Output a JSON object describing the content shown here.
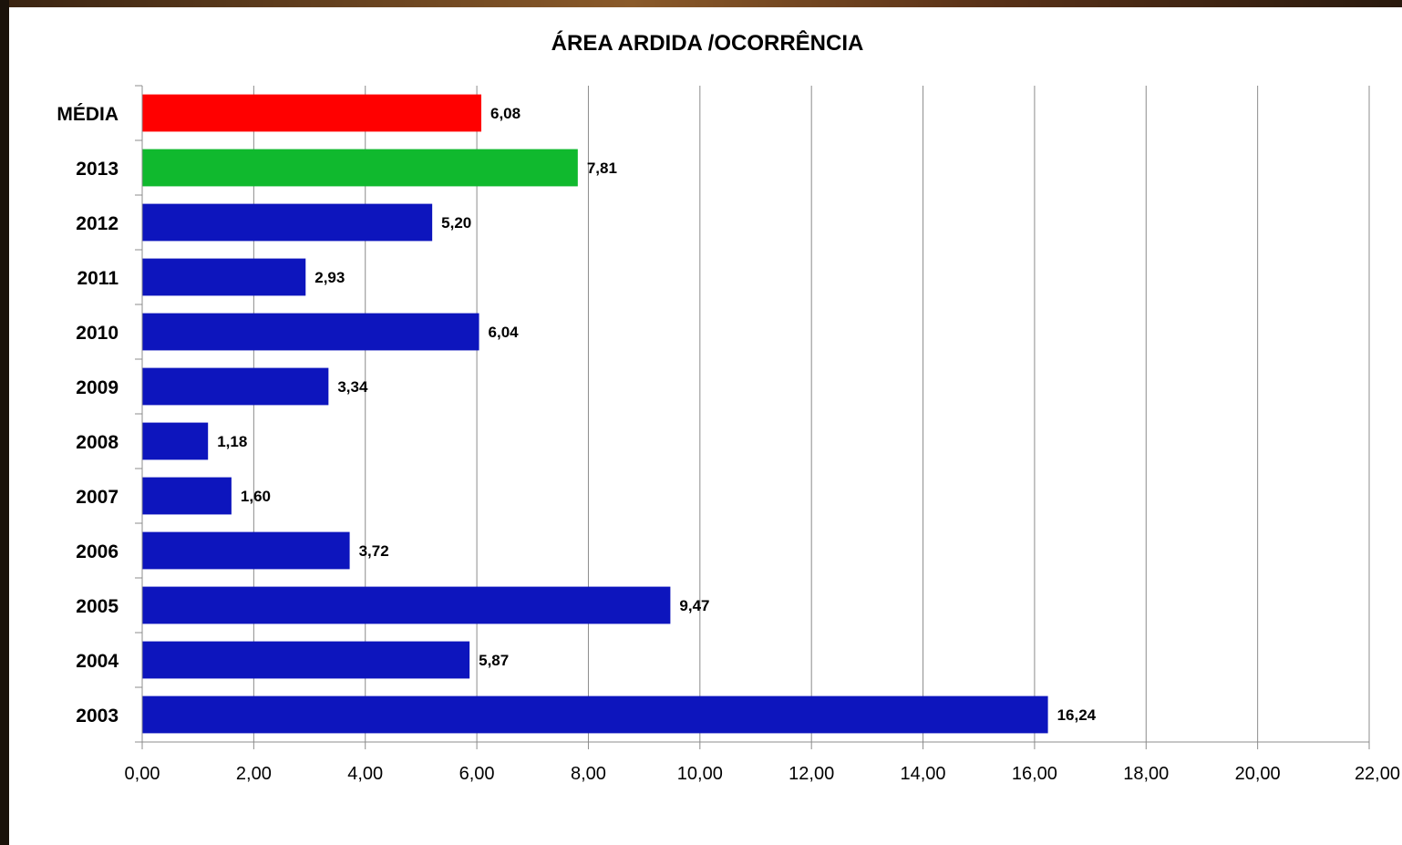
{
  "chart_data": {
    "type": "bar",
    "orientation": "horizontal",
    "title": "ÁREA ARDIDA /OCORRÊNCIA",
    "xlabel": "",
    "ylabel": "",
    "categories": [
      "MÉDIA",
      "2013",
      "2012",
      "2011",
      "2010",
      "2009",
      "2008",
      "2007",
      "2006",
      "2005",
      "2004",
      "2003"
    ],
    "values": [
      6.08,
      7.81,
      5.2,
      2.93,
      6.04,
      3.34,
      1.18,
      1.6,
      3.72,
      9.47,
      5.87,
      16.24
    ],
    "value_labels": [
      "6,08",
      "7,81",
      "5,20",
      "2,93",
      "6,04",
      "3,34",
      "1,18",
      "1,60",
      "3,72",
      "9,47",
      "5,87",
      "16,24"
    ],
    "bar_colors": [
      "#ff0000",
      "#10b92e",
      "#0d15bd",
      "#0d15bd",
      "#0d15bd",
      "#0d15bd",
      "#0d15bd",
      "#0d15bd",
      "#0d15bd",
      "#0d15bd",
      "#0d15bd",
      "#0d15bd"
    ],
    "xlim": [
      0,
      22
    ],
    "x_ticks": [
      0,
      2,
      4,
      6,
      8,
      10,
      12,
      14,
      16,
      18,
      20,
      22
    ],
    "x_tick_labels": [
      "0,00",
      "2,00",
      "4,00",
      "6,00",
      "8,00",
      "10,00",
      "12,00",
      "14,00",
      "16,00",
      "18,00",
      "20,00",
      "22,00"
    ],
    "grid": "vertical",
    "gridline_color": "#8c8c8c",
    "legend": "none"
  }
}
